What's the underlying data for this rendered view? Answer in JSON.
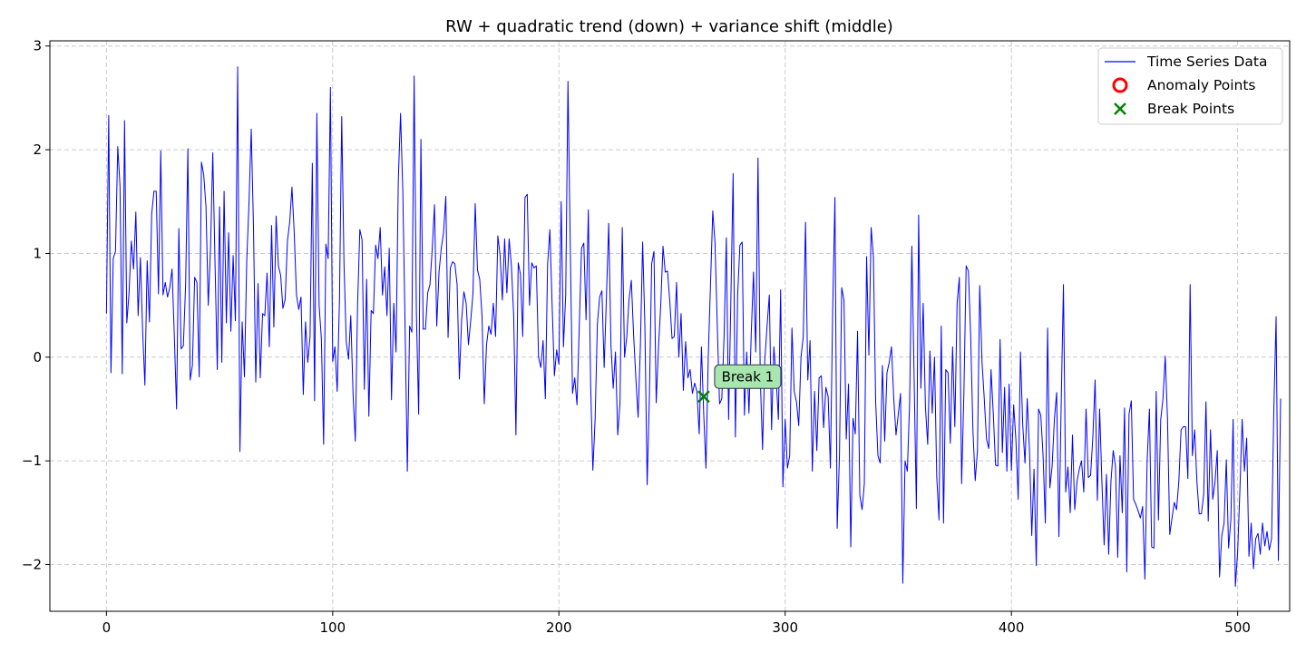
{
  "chart_data": {
    "type": "line",
    "title": "RW + quadratic trend (down) + variance shift (middle)",
    "xlabel": "",
    "ylabel": "",
    "xlim": [
      -25,
      523
    ],
    "ylim": [
      -2.45,
      3.05
    ],
    "xticks": [
      0,
      100,
      200,
      300,
      400,
      500
    ],
    "yticks": [
      -2,
      -1,
      0,
      1,
      2,
      3
    ],
    "xtick_labels": [
      "0",
      "100",
      "200",
      "300",
      "400",
      "500"
    ],
    "ytick_labels": [
      "−2",
      "−1",
      "0",
      "1",
      "2",
      "3"
    ],
    "grid": true,
    "legend_position": "top-right",
    "legend": [
      {
        "label": "Time Series Data",
        "marker": "line",
        "color": "#0000ff"
      },
      {
        "label": "Anomaly Points",
        "marker": "circle",
        "color": "#ff0000"
      },
      {
        "label": "Break Points",
        "marker": "x",
        "color": "#008000"
      }
    ],
    "series": [
      {
        "name": "Time Series Data",
        "color": "#0000ff",
        "x_start": 0,
        "x_step": 1,
        "values": [
          0.42,
          2.33,
          -0.15,
          0.95,
          1.02,
          2.03,
          1.65,
          -0.16,
          2.28,
          0.33,
          0.62,
          1.12,
          0.85,
          1.4,
          0.4,
          0.96,
          0.25,
          -0.27,
          0.93,
          0.34,
          1.38,
          1.6,
          1.6,
          0.61,
          1.99,
          0.6,
          0.72,
          0.58,
          0.67,
          0.85,
          0.21,
          -0.5,
          1.24,
          0.08,
          0.11,
          0.7,
          2.01,
          -0.22,
          -0.08,
          0.77,
          0.72,
          -0.19,
          1.88,
          1.76,
          1.45,
          0.5,
          1.05,
          1.97,
          0.9,
          -0.12,
          1.45,
          -0.05,
          1.6,
          0.33,
          1.2,
          0.25,
          0.98,
          0.35,
          2.8,
          -0.91,
          0.34,
          -0.19,
          0.92,
          1.48,
          2.2,
          1.25,
          -0.24,
          0.71,
          -0.2,
          0.42,
          0.4,
          0.81,
          0.1,
          1.27,
          0.29,
          1.36,
          0.88,
          0.79,
          0.47,
          0.56,
          1.12,
          1.3,
          1.64,
          1.2,
          0.6,
          0.46,
          0.58,
          -0.36,
          0.34,
          -0.05,
          0.2,
          1.87,
          -0.42,
          2.35,
          0.5,
          0.18,
          -0.84,
          1.09,
          0.95,
          2.6,
          -0.04,
          0.1,
          -0.33,
          0.55,
          2.32,
          0.9,
          0.15,
          -0.02,
          0.4,
          -0.35,
          -0.81,
          0.5,
          1.23,
          1.13,
          -0.31,
          0.75,
          -0.57,
          0.45,
          0.42,
          1.08,
          0.95,
          1.25,
          0.6,
          0.87,
          0.4,
          1.05,
          -0.41,
          0.52,
          0.05,
          1.7,
          2.35,
          1.6,
          0.3,
          -1.1,
          0.3,
          0.24,
          2.71,
          0.43,
          -0.55,
          2.1,
          0.27,
          0.27,
          0.62,
          0.7,
          1.04,
          1.47,
          0.3,
          0.82,
          1.05,
          1.2,
          1.55,
          0.19,
          0.86,
          0.92,
          0.9,
          0.7,
          -0.21,
          0.36,
          0.63,
          0.52,
          0.12,
          0.35,
          0.61,
          1.48,
          0.84,
          0.75,
          0.4,
          -0.45,
          0.12,
          0.3,
          0.22,
          0.52,
          0.2,
          1.17,
          0.98,
          0.55,
          1.14,
          0.62,
          1.14,
          0.88,
          0.4,
          -0.75,
          0.91,
          0.8,
          0.2,
          1.54,
          1.57,
          0.5,
          0.91,
          0.86,
          0.88,
          0.0,
          -0.1,
          0.16,
          -0.4,
          0.9,
          1.23,
          0.5,
          -0.18,
          0.07,
          -0.07,
          1.5,
          0.1,
          0.6,
          2.66,
          1.1,
          -0.35,
          -0.2,
          -0.46,
          0.3,
          1.05,
          1.1,
          0.36,
          1.42,
          -0.25,
          -1.09,
          -0.6,
          0.32,
          0.58,
          0.64,
          -0.1,
          0.58,
          1.29,
          0.12,
          -0.3,
          0.05,
          -0.75,
          -0.44,
          1.25,
          0.0,
          0.2,
          0.56,
          0.74,
          0.22,
          -0.2,
          -0.58,
          0.1,
          1.11,
          0.3,
          -1.23,
          -0.37,
          0.9,
          1.02,
          -0.44,
          0.09,
          0.5,
          1.07,
          0.82,
          0.83,
          0.54,
          0.18,
          0.2,
          0.72,
          0.0,
          0.42,
          -0.32,
          0.15,
          -0.2,
          -0.12,
          -0.35,
          -0.25,
          -0.33,
          -0.74,
          0.1,
          -0.55,
          -1.07,
          0.0,
          0.7,
          1.41,
          1.1,
          0.3,
          -0.45,
          -0.4,
          0.2,
          1.15,
          -0.6,
          0.55,
          1.77,
          -0.77,
          0.6,
          1.08,
          1.11,
          -0.56,
          0.05,
          -0.54,
          0.22,
          0.82,
          0.05,
          1.92,
          -0.2,
          -0.89,
          -0.03,
          0.3,
          0.6,
          -0.7,
          0.1,
          -0.2,
          -0.6,
          0.65,
          -1.25,
          -0.6,
          -1.07,
          -0.95,
          0.28,
          -0.33,
          -0.43,
          -0.66,
          0.0,
          0.2,
          1.3,
          -0.22,
          0.16,
          -1.1,
          -0.33,
          -0.9,
          -0.2,
          -0.18,
          -0.68,
          -0.29,
          -0.38,
          -1.07,
          0.45,
          1.54,
          -1.65,
          -0.95,
          0.67,
          0.55,
          -0.79,
          -0.26,
          -1.83,
          -0.59,
          -0.74,
          0.25,
          -1.33,
          -1.47,
          -1.22,
          0.97,
          0.02,
          1.25,
          0.97,
          -0.43,
          -0.95,
          -1.02,
          -0.08,
          -0.81,
          -0.15,
          -0.05,
          0.1,
          -0.4,
          -0.75,
          -0.55,
          -0.35,
          -2.18,
          -1.0,
          -1.1,
          -0.45,
          1.07,
          -0.2,
          -1.46,
          1.37,
          -0.3,
          0.52,
          -0.48,
          -0.84,
          0.06,
          -0.54,
          0.0,
          -1.15,
          -1.57,
          0.3,
          -1.6,
          -0.12,
          -0.15,
          -0.83,
          0.1,
          -0.67,
          0.52,
          0.77,
          -1.22,
          -0.35,
          0.88,
          0.83,
          0.2,
          -0.71,
          -1.19,
          -0.9,
          0.69,
          -0.04,
          -0.4,
          -0.79,
          -0.88,
          -0.12,
          -0.55,
          -1.04,
          -1.05,
          0.17,
          -0.92,
          -0.29,
          -1.1,
          -0.26,
          -1.09,
          -0.46,
          -0.8,
          -1.37,
          0.05,
          -0.65,
          -1.02,
          -0.4,
          -0.9,
          -1.72,
          -1.08,
          -2.01,
          -0.5,
          -0.56,
          -0.95,
          -1.6,
          0.28,
          -1.26,
          -1.05,
          -0.6,
          -0.34,
          -1.73,
          -0.46,
          0.7,
          -1.3,
          -1.06,
          -1.5,
          -0.75,
          -1.47,
          -1.2,
          -1.08,
          -1.0,
          -1.3,
          -0.5,
          -1.16,
          -1.14,
          -0.77,
          -0.22,
          -1.38,
          -0.5,
          -1.2,
          -1.81,
          -1.13,
          -1.9,
          -1.2,
          -0.9,
          -1.05,
          -1.93,
          -0.95,
          -1.5,
          -0.49,
          -2.07,
          -0.55,
          -0.42,
          -1.37,
          -1.42,
          -1.48,
          -1.55,
          -1.44,
          -2.14,
          -1.0,
          -0.5,
          -1.83,
          -1.84,
          -0.33,
          -1.57,
          -0.6,
          -0.4,
          0.01,
          -0.6,
          -1.71,
          -1.55,
          -1.4,
          -1.47,
          -1.2,
          -0.7,
          -0.67,
          -0.67,
          -1.17,
          0.7,
          -0.95,
          -0.7,
          -1.2,
          -1.51,
          -1.51,
          -1.32,
          -0.43,
          -1.58,
          -0.7,
          -1.37,
          -1.2,
          -0.9,
          -2.12,
          -1.72,
          -1.6,
          -0.99,
          -1.84,
          -1.57,
          -0.6,
          -2.21,
          -1.88,
          -1.28,
          -0.6,
          -1.1,
          -0.78,
          -1.92,
          -1.6,
          -2.04,
          -1.75,
          -1.7,
          -1.9,
          -1.6,
          -1.82,
          -1.68,
          -1.86,
          -1.75,
          -0.5,
          0.39,
          -1.96,
          -0.4
        ]
      }
    ],
    "anomaly_points": [],
    "break_points": [
      {
        "x": 264,
        "y": -0.38,
        "label": "Break 1"
      }
    ]
  }
}
